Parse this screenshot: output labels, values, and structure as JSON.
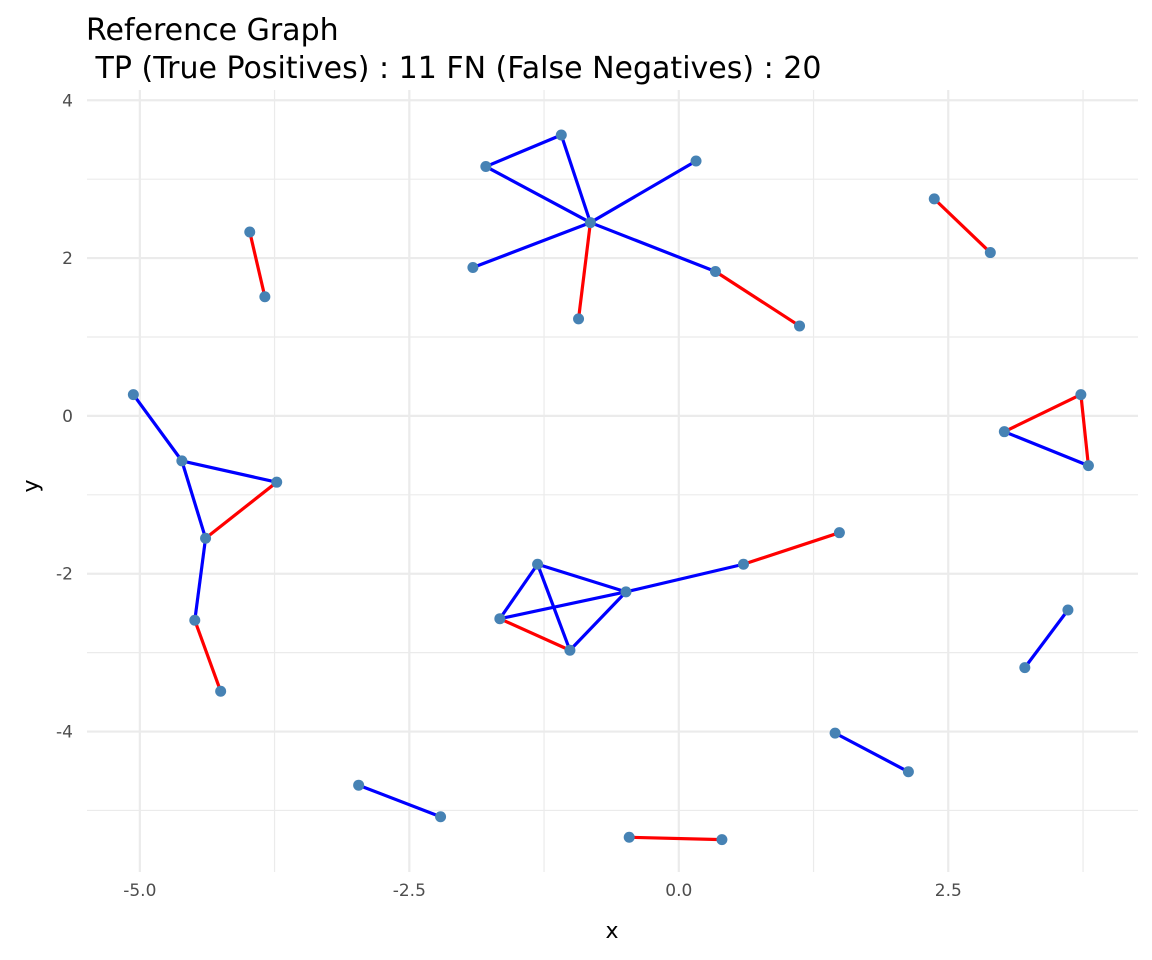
{
  "chart_data": {
    "type": "network",
    "title": "Reference Graph",
    "subtitle": " TP (True Positives) : 11 FN (False Negatives) : 20",
    "xlabel": "x",
    "ylabel": "y",
    "xlim": [
      -5.49,
      4.26
    ],
    "ylim": [
      -5.78,
      4.13
    ],
    "xticks": [
      -5.0,
      -2.5,
      0.0,
      2.5
    ],
    "xtick_labels": [
      "-5.0",
      "-2.5",
      "0.0",
      "2.5"
    ],
    "yticks": [
      -4,
      -2,
      0,
      2,
      4
    ],
    "ytick_labels": [
      "-4",
      "-2",
      "0",
      "2",
      "4"
    ],
    "grid": true,
    "colors": {
      "tp_edge": "#ff0000",
      "fn_edge": "#0000ff",
      "node": "#4682b4",
      "grid": "#ebebeb"
    },
    "nodes": [
      [
        -0.82,
        2.45
      ],
      [
        -1.09,
        3.56
      ],
      [
        -1.79,
        3.16
      ],
      [
        0.16,
        3.23
      ],
      [
        -1.91,
        1.88
      ],
      [
        0.34,
        1.83
      ],
      [
        -0.93,
        1.23
      ],
      [
        1.12,
        1.14
      ],
      [
        -3.98,
        2.33
      ],
      [
        -3.84,
        1.51
      ],
      [
        2.37,
        2.75
      ],
      [
        2.89,
        2.07
      ],
      [
        -5.06,
        0.27
      ],
      [
        -4.61,
        -0.57
      ],
      [
        -3.73,
        -0.84
      ],
      [
        -4.39,
        -1.55
      ],
      [
        -4.49,
        -2.59
      ],
      [
        -4.25,
        -3.49
      ],
      [
        3.73,
        0.27
      ],
      [
        3.02,
        -0.2
      ],
      [
        3.8,
        -0.63
      ],
      [
        -1.31,
        -1.88
      ],
      [
        -1.66,
        -2.57
      ],
      [
        -1.01,
        -2.97
      ],
      [
        -0.49,
        -2.23
      ],
      [
        0.6,
        -1.88
      ],
      [
        1.49,
        -1.48
      ],
      [
        3.61,
        -2.46
      ],
      [
        3.21,
        -3.19
      ],
      [
        1.45,
        -4.02
      ],
      [
        2.13,
        -4.51
      ],
      [
        -2.97,
        -4.68
      ],
      [
        -2.21,
        -5.08
      ],
      [
        -0.46,
        -5.34
      ],
      [
        0.4,
        -5.37
      ]
    ],
    "edges_tp": [
      [
        0,
        6
      ],
      [
        5,
        7
      ],
      [
        8,
        9
      ],
      [
        10,
        11
      ],
      [
        15,
        14
      ],
      [
        16,
        17
      ],
      [
        19,
        18
      ],
      [
        18,
        20
      ],
      [
        22,
        23
      ],
      [
        25,
        26
      ],
      [
        33,
        34
      ]
    ],
    "edges_fn": [
      [
        2,
        1
      ],
      [
        1,
        0
      ],
      [
        2,
        0
      ],
      [
        0,
        3
      ],
      [
        0,
        4
      ],
      [
        0,
        5
      ],
      [
        12,
        13
      ],
      [
        13,
        14
      ],
      [
        13,
        15
      ],
      [
        15,
        16
      ],
      [
        19,
        20
      ],
      [
        21,
        22
      ],
      [
        21,
        23
      ],
      [
        21,
        24
      ],
      [
        22,
        24
      ],
      [
        23,
        24
      ],
      [
        24,
        25
      ],
      [
        27,
        28
      ],
      [
        29,
        30
      ],
      [
        31,
        32
      ]
    ]
  }
}
